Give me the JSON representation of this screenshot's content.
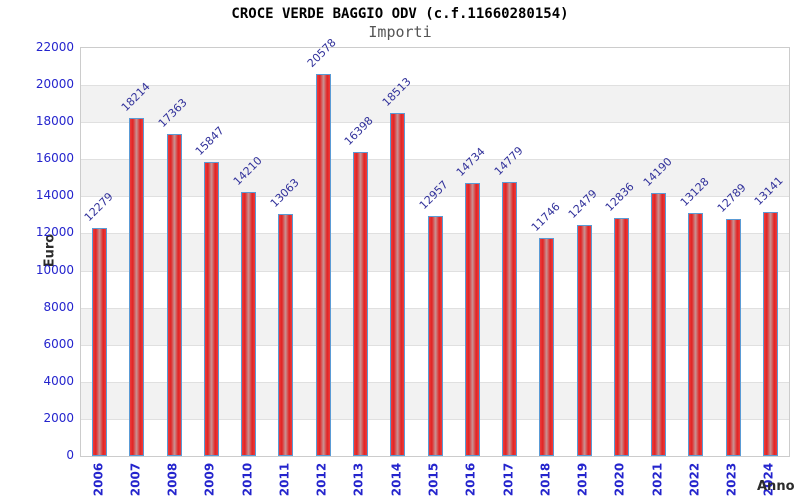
{
  "header": {
    "title": "CROCE VERDE BAGGIO ODV (c.f.11660280154)",
    "subtitle": "Importi"
  },
  "chart_data": {
    "type": "bar",
    "title": "CROCE VERDE BAGGIO ODV (c.f.11660280154)",
    "subtitle": "Importi",
    "xlabel": "Anno",
    "ylabel": "Euro",
    "categories": [
      "2006",
      "2007",
      "2008",
      "2009",
      "2010",
      "2011",
      "2012",
      "2013",
      "2014",
      "2015",
      "2016",
      "2017",
      "2018",
      "2019",
      "2020",
      "2021",
      "2022",
      "2023",
      "2024"
    ],
    "values": [
      12279,
      18214,
      17363,
      15847,
      14210,
      13063,
      20578,
      16398,
      18513,
      12957,
      14734,
      14779,
      11746,
      12479,
      12836,
      14190,
      13128,
      12789,
      13141
    ],
    "ylim": [
      0,
      22000
    ],
    "ytick_step": 2000,
    "legend": "none",
    "grid": "horizontal-bands",
    "colors": {
      "bar_fill_edge": "#e02424",
      "bar_fill_center": "#c99494",
      "bar_border": "#5a9bd5",
      "band_alt": "#f2f2f2",
      "gridline": "#e0e0e0",
      "plot_border": "#cccccc",
      "tick_text": "#2424cd",
      "value_text": "#32329b",
      "title_text": "#000000",
      "subtitle_text": "#555555",
      "axis_title_text": "#2b2b2b"
    }
  }
}
